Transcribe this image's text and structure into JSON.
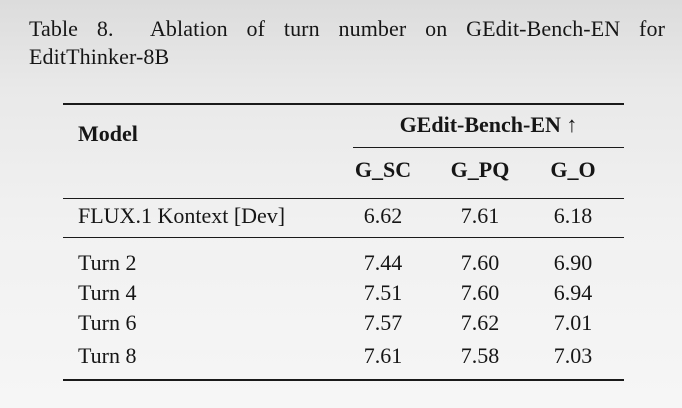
{
  "caption": {
    "line1": "Table 8.  Ablation of turn number on GEdit-Bench-EN for",
    "line2": "EditThinker-8B"
  },
  "table": {
    "model_header": "Model",
    "group_header": "GEdit-Bench-EN ↑",
    "group_header_arrow_icon": "↑",
    "columns": [
      "G_SC",
      "G_PQ",
      "G_O"
    ],
    "rows": [
      {
        "model": "FLUX.1 Kontext [Dev]",
        "g_sc": "6.62",
        "g_pq": "7.61",
        "g_o": "6.18"
      },
      {
        "model": "Turn 2",
        "g_sc": "7.44",
        "g_pq": "7.60",
        "g_o": "6.90"
      },
      {
        "model": "Turn 4",
        "g_sc": "7.51",
        "g_pq": "7.60",
        "g_o": "6.94"
      },
      {
        "model": "Turn 6",
        "g_sc": "7.57",
        "g_pq": "7.62",
        "g_o": "7.01"
      },
      {
        "model": "Turn 8",
        "g_sc": "7.61",
        "g_pq": "7.58",
        "g_o": "7.03"
      }
    ]
  },
  "colors": {
    "text": "#161616",
    "rule": "#1a1a1a",
    "background_top": "#dcdcdc",
    "background_bottom": "#f6f6f6"
  }
}
